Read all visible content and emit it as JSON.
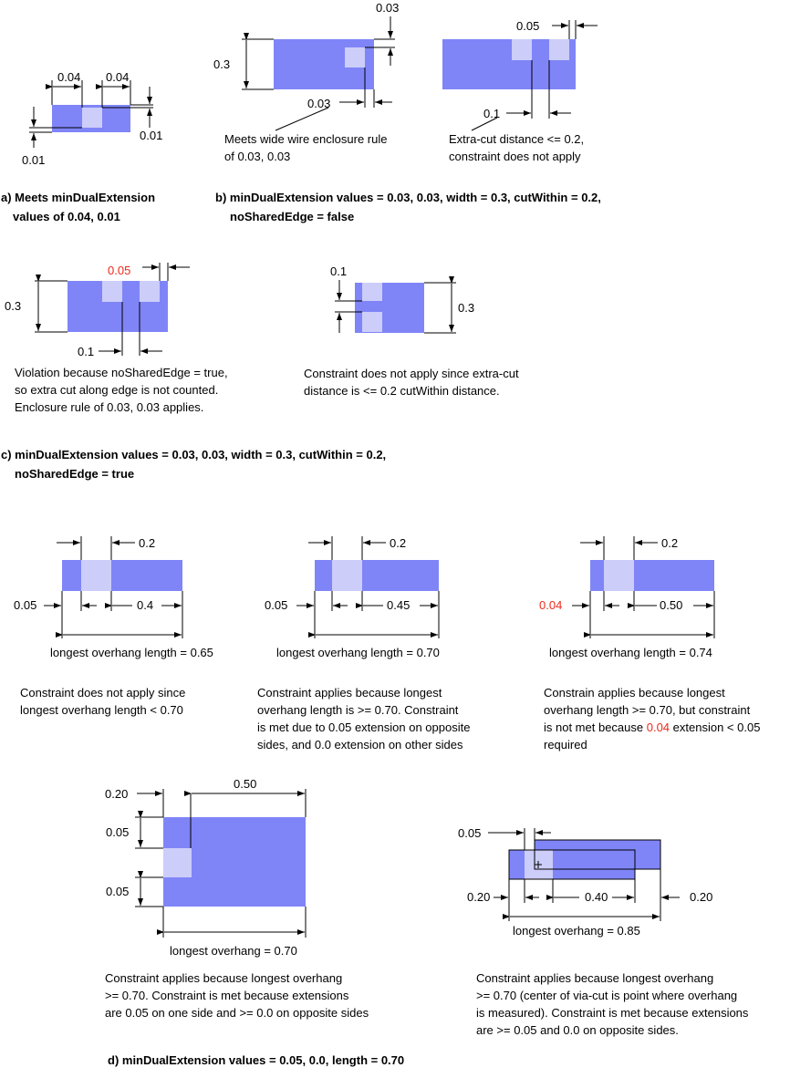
{
  "section_a": {
    "dims": {
      "left": "0.04",
      "right": "0.04",
      "top": "0.01",
      "bottom": "0.01"
    },
    "caption_line1": "a) Meets minDualExtension",
    "caption_line2": "values of 0.04, 0.01"
  },
  "section_b": {
    "fig1": {
      "dim_height": "0.3",
      "dim_top": "0.03",
      "dim_side": "0.03",
      "note_line1": "Meets wide wire enclosure rule",
      "note_line2": "of 0.03, 0.03"
    },
    "fig2": {
      "dim_edge": "0.05",
      "dim_gap": "0.1",
      "note_line1": "Extra-cut distance <= 0.2,",
      "note_line2": "constraint does not apply"
    },
    "caption_line1": "b) minDualExtension values = 0.03, 0.03, width = 0.3, cutWithin = 0.2,",
    "caption_line2": "noSharedEdge = false"
  },
  "section_c": {
    "fig1": {
      "dim_edge": "0.05",
      "dim_height": "0.3",
      "dim_gap": "0.1",
      "note_line1": "Violation because noSharedEdge = true,",
      "note_line2": "so extra cut along edge is not counted.",
      "note_line3": "Enclosure rule of 0.03, 0.03 applies."
    },
    "fig2": {
      "dim_gap": "0.1",
      "dim_height": "0.3",
      "note_line1": "Constraint does not apply since extra-cut",
      "note_line2": "distance is <= 0.2 cutWithin distance."
    },
    "caption_line1": "c) minDualExtension values = 0.03, 0.03, width = 0.3, cutWithin = 0.2,",
    "caption_line2": "noSharedEdge = true"
  },
  "section_d": {
    "fig1": {
      "dim_cut": "0.2",
      "dim_left": "0.05",
      "dim_right": "0.4",
      "overhang": "longest overhang length = 0.65",
      "note_line1": "Constraint does not apply since",
      "note_line2": "longest overhang length < 0.70"
    },
    "fig2": {
      "dim_cut": "0.2",
      "dim_left": "0.05",
      "dim_right": "0.45",
      "overhang": "longest overhang length = 0.70",
      "note_line1": "Constraint applies because longest",
      "note_line2": "overhang length is >= 0.70. Constraint",
      "note_line3": "is met due to 0.05 extension on opposite",
      "note_line4": "sides, and 0.0 extension on other sides"
    },
    "fig3": {
      "dim_cut": "0.2",
      "dim_left": "0.04",
      "dim_right": "0.50",
      "overhang": "longest overhang length = 0.74",
      "note_line1": "Constrain applies because longest",
      "note_line2": "overhang length >= 0.70, but constraint",
      "note_line3a": "is not met because ",
      "note_line3_red": "0.04",
      "note_line3b": " extension < 0.05",
      "note_line4": "required"
    },
    "fig4": {
      "dim_left": "0.20",
      "dim_top": "0.50",
      "dim_ext_top": "0.05",
      "dim_ext_bottom": "0.05",
      "overhang": "longest overhang = 0.70",
      "note_line1": "Constraint applies because longest overhang",
      "note_line2": ">= 0.70. Constraint is met because extensions",
      "note_line3": "are 0.05 on one side and >= 0.0 on opposite sides"
    },
    "fig5": {
      "dim_top": "0.05",
      "dim_left": "0.20",
      "dim_mid": "0.40",
      "dim_right": "0.20",
      "overhang": "longest overhang = 0.85",
      "note_line1": "Constraint applies because longest overhang",
      "note_line2": ">= 0.70 (center of via-cut is point where overhang",
      "note_line3": "is measured). Constraint is met because extensions",
      "note_line4": "are >= 0.05 and 0.0 on opposite sides."
    },
    "caption": "d) minDualExtension values = 0.05, 0.0,  length = 0.70"
  },
  "colors": {
    "metal": "#7f85f7",
    "cut": "#cccdf9",
    "violation": "#ee2a1b"
  }
}
